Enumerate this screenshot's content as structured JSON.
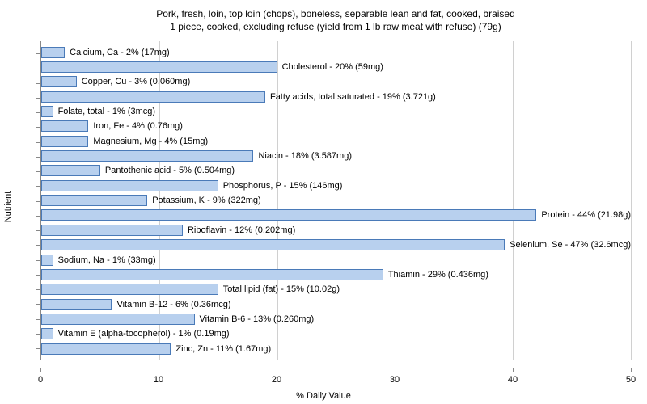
{
  "chart": {
    "type": "bar-horizontal",
    "title_line1": "Pork, fresh, loin, top loin (chops), boneless, separable lean and fat, cooked, braised",
    "title_line2": "1 piece, cooked, excluding refuse (yield from 1 lb raw meat with refuse) (79g)",
    "title_fontsize": 12,
    "y_axis_label": "Nutrient",
    "x_axis_label": "% Daily Value",
    "label_fontsize": 11,
    "xlim": [
      0,
      50
    ],
    "xtick_step": 10,
    "xticks": [
      0,
      10,
      20,
      30,
      40,
      50
    ],
    "background_color": "#ffffff",
    "grid_color": "#d0d0d0",
    "bar_color": "#b8d0ee",
    "bar_border_color": "#4a7ab8",
    "axis_color": "#888888",
    "nutrients": [
      {
        "label": "Calcium, Ca - 2% (17mg)",
        "value": 2
      },
      {
        "label": "Cholesterol - 20% (59mg)",
        "value": 20
      },
      {
        "label": "Copper, Cu - 3% (0.060mg)",
        "value": 3
      },
      {
        "label": "Fatty acids, total saturated - 19% (3.721g)",
        "value": 19
      },
      {
        "label": "Folate, total - 1% (3mcg)",
        "value": 1
      },
      {
        "label": "Iron, Fe - 4% (0.76mg)",
        "value": 4
      },
      {
        "label": "Magnesium, Mg - 4% (15mg)",
        "value": 4
      },
      {
        "label": "Niacin - 18% (3.587mg)",
        "value": 18
      },
      {
        "label": "Pantothenic acid - 5% (0.504mg)",
        "value": 5
      },
      {
        "label": "Phosphorus, P - 15% (146mg)",
        "value": 15
      },
      {
        "label": "Potassium, K - 9% (322mg)",
        "value": 9
      },
      {
        "label": "Protein - 44% (21.98g)",
        "value": 44
      },
      {
        "label": "Riboflavin - 12% (0.202mg)",
        "value": 12
      },
      {
        "label": "Selenium, Se - 47% (32.6mcg)",
        "value": 47
      },
      {
        "label": "Sodium, Na - 1% (33mg)",
        "value": 1
      },
      {
        "label": "Thiamin - 29% (0.436mg)",
        "value": 29
      },
      {
        "label": "Total lipid (fat) - 15% (10.02g)",
        "value": 15
      },
      {
        "label": "Vitamin B-12 - 6% (0.36mcg)",
        "value": 6
      },
      {
        "label": "Vitamin B-6 - 13% (0.260mg)",
        "value": 13
      },
      {
        "label": "Vitamin E (alpha-tocopherol) - 1% (0.19mg)",
        "value": 1
      },
      {
        "label": "Zinc, Zn - 11% (1.67mg)",
        "value": 11
      }
    ]
  }
}
